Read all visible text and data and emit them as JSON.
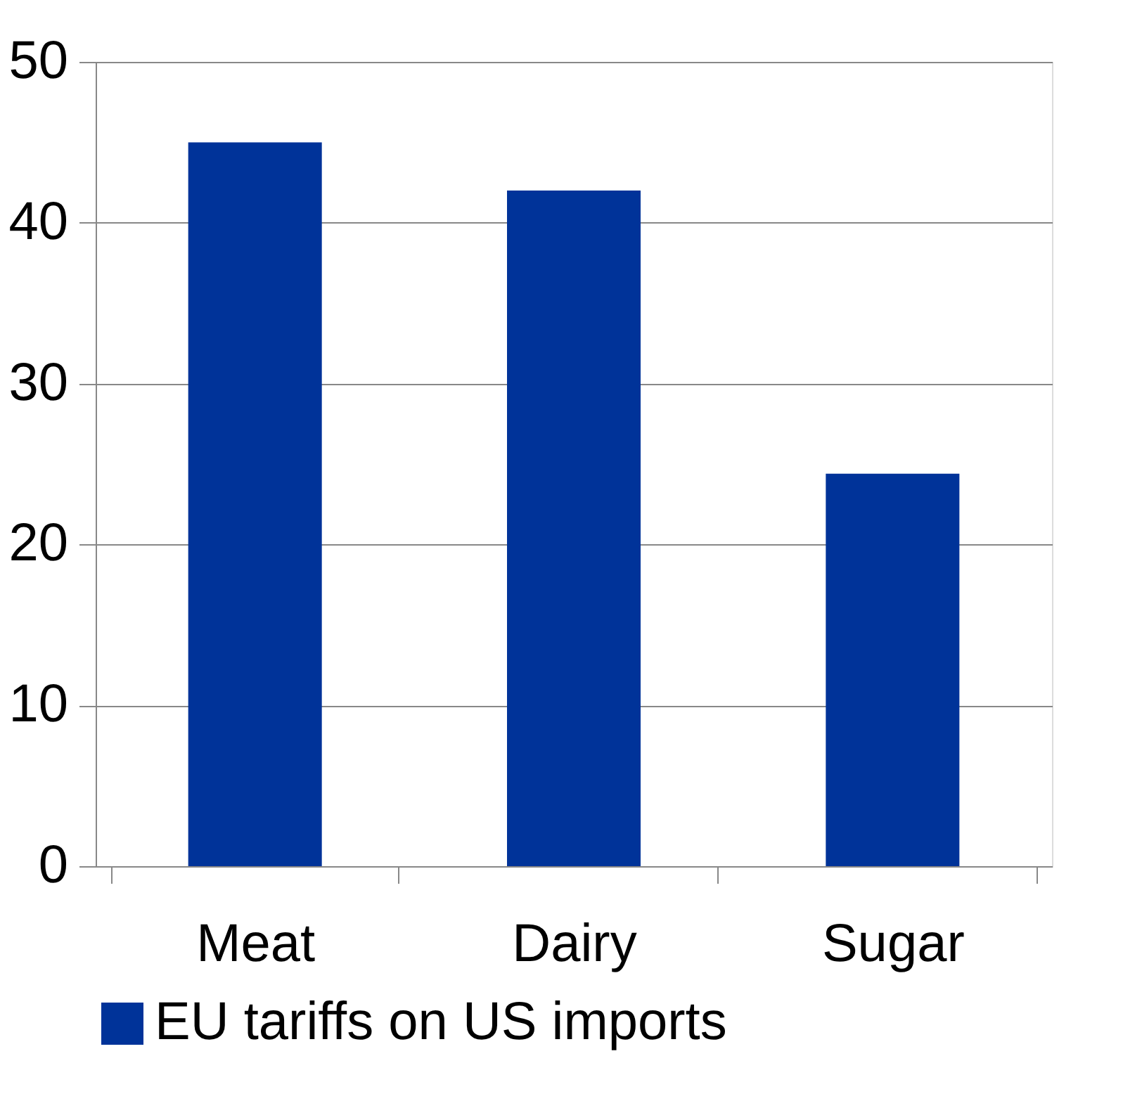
{
  "chart_data": {
    "type": "bar",
    "categories": [
      "Meat",
      "Dairy",
      "Sugar"
    ],
    "series": [
      {
        "name": "EU tariffs on US imports",
        "color": "#003399",
        "values": [
          45,
          42,
          24.4
        ]
      }
    ],
    "ylim": [
      0,
      50
    ],
    "yticks": [
      0,
      10,
      20,
      30,
      40,
      50
    ],
    "grid": "y",
    "legend": "bottom"
  }
}
